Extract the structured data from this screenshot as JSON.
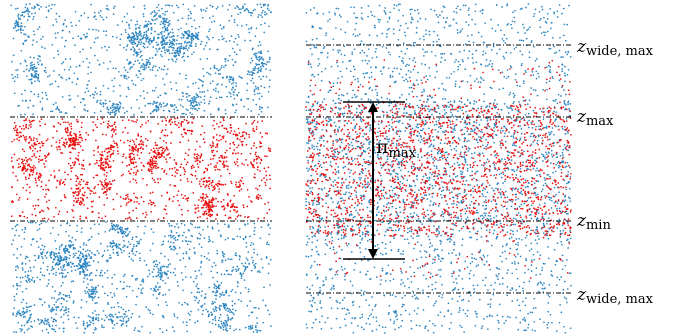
{
  "colors": {
    "outer_particles": "#2e86c1",
    "inner_particles": "#e81010",
    "reference_lines": "#000000",
    "background": "#ffffff"
  },
  "left_panel": {
    "particle_layers": [
      "blue",
      "red",
      "blue"
    ],
    "reference_lines": 2
  },
  "right_panel": {
    "labels": {
      "z_wide_max_top": {
        "symbol": "z",
        "subscript": "wide, max"
      },
      "z_max": {
        "symbol": "z",
        "subscript": "max"
      },
      "z_min": {
        "symbol": "z",
        "subscript": "min"
      },
      "z_wide_max_bottom": {
        "symbol": "z",
        "subscript": "wide, max"
      }
    },
    "span_label": {
      "symbol": "π",
      "subscript": "max"
    }
  }
}
